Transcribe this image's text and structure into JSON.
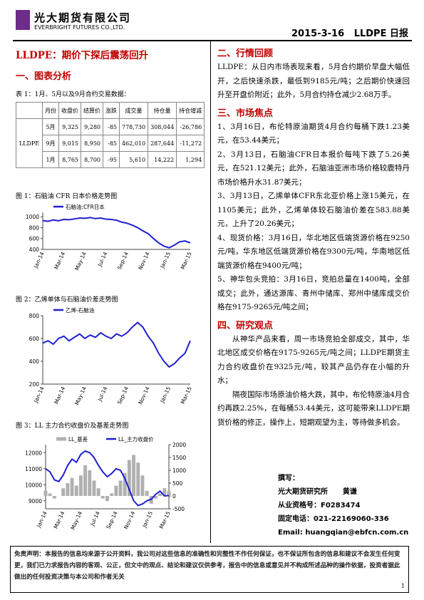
{
  "header": {
    "company": "光大期货有限公司",
    "company_en": "EVERBRIGHT FUTURES CO.,LTD.",
    "date_title": "2015-3-16   LLDPE 日报"
  },
  "left": {
    "title": "LLDPE：期价下探后震荡回升",
    "section": "一、图表分析",
    "table_caption": "表 1：1月、5月以及9月合约交易数据：",
    "table": {
      "headers": [
        "月份",
        "收盘价",
        "结算价",
        "涨跌",
        "成交量",
        "持仓量",
        "持仓增减"
      ],
      "product": "LLDPE",
      "rows": [
        [
          "5月",
          "9,325",
          "9,280",
          "-85",
          "778,730",
          "308,044",
          "-26,786"
        ],
        [
          "9月",
          "9,015",
          "8,950",
          "-85",
          "462,010",
          "287,644",
          "-11,272"
        ],
        [
          "1月",
          "8,765",
          "8,700",
          "-95",
          "5,610",
          "14,222",
          "1,294"
        ]
      ]
    }
  },
  "figures": [
    {
      "type": "line",
      "caption": "图 1：石脑油 CFR 日本价格走势图",
      "categories": [
        "Jan-14",
        null,
        null,
        null,
        "Mar-14",
        null,
        null,
        null,
        "May-14",
        null,
        null,
        null,
        "Jul-14",
        null,
        null,
        null,
        "Sep-14",
        null,
        null,
        null,
        "Nov-14",
        null,
        null,
        null,
        "Jan-15",
        null,
        null,
        null,
        "Mar-15"
      ],
      "series": [
        {
          "name": "石脑油:CFR日本",
          "color": "#1f1fd0",
          "values": [
            930,
            915,
            940,
            925,
            950,
            945,
            960,
            975,
            970,
            985,
            965,
            975,
            955,
            950,
            935,
            900,
            880,
            845,
            800,
            740,
            690,
            600,
            520,
            460,
            430,
            480,
            540,
            555,
            520
          ]
        }
      ],
      "ylim": [
        400,
        1080
      ],
      "yticks": [
        400,
        600,
        800,
        1000
      ]
    },
    {
      "type": "line",
      "caption": "图 2：乙烯单体与石脑油价差走势图",
      "categories": [
        "Jan-14",
        null,
        null,
        null,
        "Mar-14",
        null,
        null,
        null,
        "May-14",
        null,
        null,
        null,
        "Jul-14",
        null,
        null,
        null,
        "Sep-14",
        null,
        null,
        null,
        "Nov-14",
        null,
        null,
        null,
        "Jan-15",
        null,
        null,
        null,
        "Mar-15"
      ],
      "series": [
        {
          "name": "乙烯-石脑油",
          "color": "#1f1fd0",
          "values": [
            560,
            580,
            550,
            600,
            620,
            580,
            610,
            640,
            600,
            630,
            610,
            650,
            620,
            600,
            640,
            620,
            650,
            700,
            740,
            700,
            620,
            560,
            470,
            400,
            350,
            380,
            430,
            470,
            580
          ]
        }
      ],
      "ylim": [
        200,
        800
      ],
      "yticks": [
        200,
        400,
        600,
        800
      ]
    },
    {
      "type": "line",
      "caption": "图 3：LL 主力合约收盘价及基差走势图",
      "categories": [
        "Jan-14",
        null,
        null,
        null,
        "Mar-14",
        null,
        null,
        null,
        "May-14",
        null,
        null,
        null,
        "Jul-14",
        null,
        null,
        null,
        "Sep-14",
        null,
        null,
        null,
        "Nov-14",
        null,
        null,
        null,
        "Jan-15",
        null,
        null,
        null,
        "Mar-15"
      ],
      "series": [
        {
          "name": "LL_基差",
          "color": "#b0b0b0",
          "axis": "y2",
          "values": [
            200,
            100,
            -100,
            0,
            300,
            500,
            700,
            400,
            800,
            1200,
            1000,
            600,
            300,
            -100,
            -200,
            100,
            400,
            600,
            900,
            1400,
            1600,
            1300,
            800,
            200,
            -300,
            -100,
            100,
            300,
            200
          ]
        },
        {
          "name": "LL_主力收盘价",
          "color": "#1f1fd0",
          "values": [
            11000,
            10800,
            10300,
            10200,
            10600,
            11200,
            11600,
            11400,
            11900,
            12100,
            12000,
            11700,
            11200,
            10800,
            10500,
            10700,
            11000,
            10900,
            10400,
            9700,
            9000,
            8700,
            8800,
            9000,
            9100,
            9400,
            9600,
            9300,
            9325
          ]
        }
      ],
      "ylim": [
        8500,
        12500
      ],
      "yticks": [
        9000,
        10000,
        11000,
        12000
      ],
      "y2lim": [
        -500,
        2000
      ],
      "y2ticks": [
        -500,
        0,
        500,
        1000,
        1500,
        2000
      ]
    }
  ],
  "right": {
    "sections": [
      {
        "heading": "二、行情回顾",
        "paragraphs": [
          "LLDPE：从日内市场表现来看，5月合约期价早盘大幅低开，之后快速杀跌，最低到9185元/吨；之后期价快速回升至开盘价附近；此外，5月合约持仓减少2.68万手。"
        ]
      },
      {
        "heading": "三、市场焦点",
        "paragraphs": [
          "1、3月16日，布伦特原油期货4月合约每桶下跌1.23美元，在53.44美元；",
          "2、3月13日，石脑油CFR日本报价每吨下跌了5.26美元，在521.12美元；此外，石脑油亚洲市场价格较鹿特丹市场价格升水31.87美元；",
          "3、3月13日，乙烯单体CFR东北亚价格上涨15美元，在1105美元；此外，乙烯单体较石脑油价差在583.88美元，上升了20.26美元；",
          "4、现货价格：3月16日，华北地区低端货源价格在9250元/吨，华东地区低端货源价格在9300元/吨，华南地区低端货源价格在9400元/吨；",
          "5、神华包头竞拍：3月16日，竞拍总量在1400吨，全部成交；此外，通达源库、青州中储库、郑州中储库成交价格在9175-9265元/吨之间；"
        ]
      },
      {
        "heading": "四、研究观点",
        "paragraphs": [
          "从神华产品来看，周一市场竞拍全部成交，其中，华北地区成交价格在9175-9265元/吨之间；LLDPE期货主力合约收盘价在9325元/吨，较其产品仍存在小幅的升水；",
          "隔夜国际市场原油价格大跌，其中，布伦特原油4月合约再跌2.25%，在每桶53.44美元，这可能带来LLDPE期货价格的修正，操作上，短期观望为主，等待做多机会。"
        ]
      }
    ]
  },
  "contact": {
    "label": "撰写：",
    "lines": [
      "光大期货研究所      黄谦",
      "从业资格号：F0283474",
      "固定电话：021-22169060-336",
      "Email: huangqian@ebfcn.com.cn"
    ]
  },
  "disclaimer": "免责声明：本报告的信息均来源于公开资料，我公司对这些信息的准确性和完整性不作任何保证，也不保证所包含的信息和建议不会发生任何变更，我们已力求报告内容的客观、公正，但文中的观点、结论和建议仅供参考，报告中的信息或意见并不构成所述品种的操作依据，投资者据此做出的任何投资决策与本公司和作者无关",
  "page_number": "1"
}
